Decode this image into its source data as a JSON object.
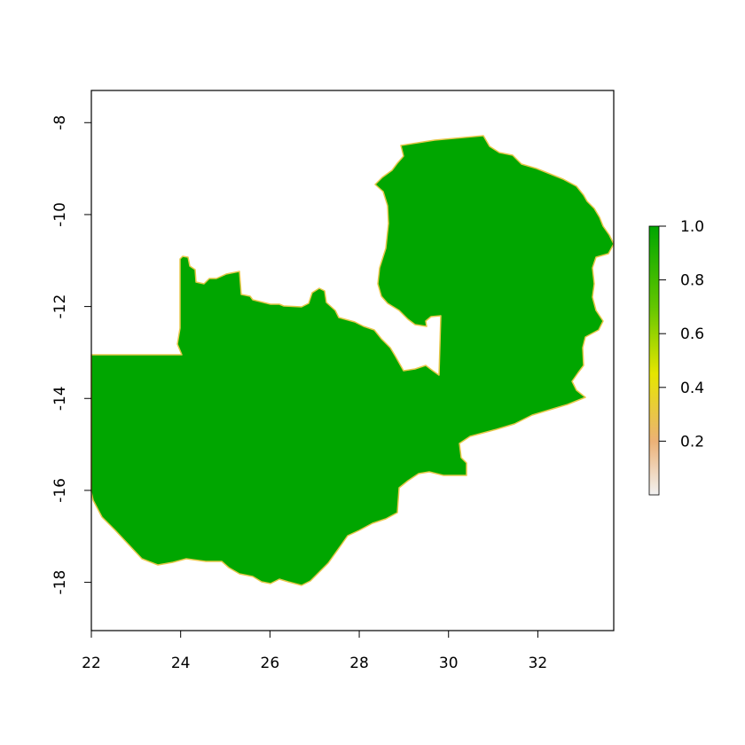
{
  "map": {
    "x_ticks": [
      "22",
      "24",
      "26",
      "28",
      "30",
      "32"
    ],
    "y_ticks": [
      "-8",
      "-10",
      "-12",
      "-14",
      "-16",
      "-18"
    ],
    "x_range": [
      22,
      33.7
    ],
    "y_range": [
      -19.05,
      -7.3
    ],
    "region_value": 1.0,
    "region_color": "#00A600",
    "border_color": "#E6C84A"
  },
  "legend": {
    "tick_labels": [
      "1.0",
      "0.8",
      "0.6",
      "0.4",
      "0.2"
    ],
    "range": [
      0,
      1
    ],
    "gradient_colors": [
      "#F2F2F2",
      "#ECB176",
      "#E6E600",
      "#63C600",
      "#00A600"
    ]
  }
}
